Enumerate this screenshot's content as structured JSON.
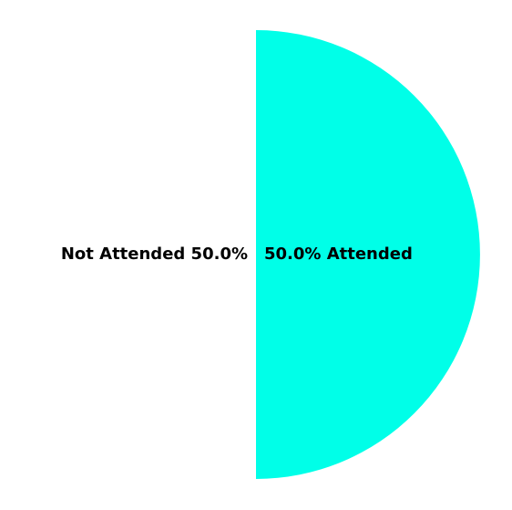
{
  "chart_data": {
    "type": "pie",
    "categories": [
      "Attended",
      "Not Attended"
    ],
    "values": [
      50.0,
      50.0
    ],
    "value_labels": [
      "50.0%",
      "50.0%"
    ],
    "colors": [
      "#00ffe8",
      "#ffffff"
    ],
    "start_angle_deg": 90,
    "direction": "clockwise"
  }
}
